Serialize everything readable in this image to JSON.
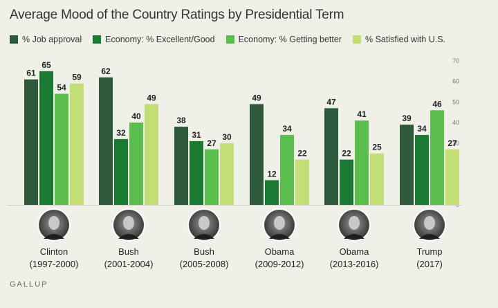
{
  "title": "Average Mood of the Country Ratings by Presidential Term",
  "footer": "GALLUP",
  "legend": [
    {
      "label": "% Job approval",
      "color": "#2e5a3b"
    },
    {
      "label": "Economy: % Excellent/Good",
      "color": "#1a7a34"
    },
    {
      "label": "Economy: % Getting better",
      "color": "#5bbd4e"
    },
    {
      "label": "% Satisfied with U.S.",
      "color": "#c2de74"
    }
  ],
  "presidents": [
    {
      "name": "Clinton",
      "term": "(1997-2000)"
    },
    {
      "name": "Bush",
      "term": "(2001-2004)"
    },
    {
      "name": "Bush",
      "term": "(2005-2008)"
    },
    {
      "name": "Obama",
      "term": "(2009-2012)"
    },
    {
      "name": "Obama",
      "term": "(2013-2016)"
    },
    {
      "name": "Trump",
      "term": "(2017)"
    }
  ],
  "chart_data": {
    "type": "bar",
    "title": "Average Mood of the Country Ratings by Presidential Term",
    "categories": [
      "Clinton (1997-2000)",
      "Bush (2001-2004)",
      "Bush (2005-2008)",
      "Obama (2009-2012)",
      "Obama (2013-2016)",
      "Trump (2017)"
    ],
    "series": [
      {
        "name": "% Job approval",
        "color": "#2e5a3b",
        "values": [
          61,
          62,
          38,
          49,
          47,
          39
        ]
      },
      {
        "name": "Economy: % Excellent/Good",
        "color": "#1a7a34",
        "values": [
          65,
          32,
          31,
          12,
          22,
          34
        ]
      },
      {
        "name": "Economy: % Getting better",
        "color": "#5bbd4e",
        "values": [
          54,
          40,
          27,
          34,
          41,
          46
        ]
      },
      {
        "name": "% Satisfied with U.S.",
        "color": "#c2de74",
        "values": [
          59,
          49,
          30,
          22,
          25,
          27
        ]
      }
    ],
    "ylim": [
      0,
      70
    ],
    "yticks": [
      0,
      10,
      20,
      30,
      40,
      50,
      60,
      70
    ],
    "grid": false,
    "legend": "top"
  }
}
